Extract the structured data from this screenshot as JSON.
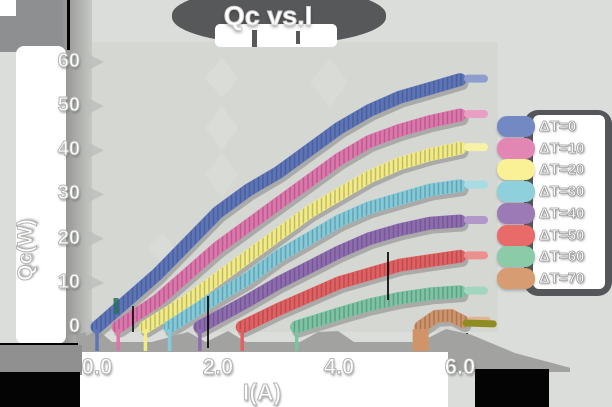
{
  "title": "Qc vs.I",
  "chart_data": {
    "type": "line",
    "title": "Qc vs.I",
    "xlabel": "I(A)",
    "ylabel": "Qc(W)",
    "x_ticks": [
      "0.0",
      "2.0",
      "4.0",
      "6.0"
    ],
    "x_tick_values": [
      0,
      2,
      4,
      6
    ],
    "y_ticks": [
      "0",
      "10",
      "20",
      "30",
      "40",
      "50",
      "60"
    ],
    "y_tick_values": [
      0,
      10,
      20,
      30,
      40,
      50,
      60
    ],
    "xlim": [
      -0.42,
      6.6
    ],
    "ylim": [
      -4,
      63
    ],
    "grid": false,
    "legend_position": "right",
    "series": [
      {
        "name": "ΔT=0",
        "line_color": "#5c74b8",
        "swatch_color": "#7289c4",
        "x": [
          0,
          0.5,
          1,
          1.5,
          2,
          2.5,
          3,
          3.5,
          4,
          4.5,
          5,
          5.5,
          6
        ],
        "y": [
          0,
          6,
          12,
          19,
          26,
          31,
          35,
          40,
          45,
          49,
          52,
          54,
          56
        ]
      },
      {
        "name": "ΔT=10",
        "line_color": "#e075ab",
        "swatch_color": "#e287b4",
        "x": [
          0.35,
          1,
          1.5,
          2,
          2.5,
          3,
          3.5,
          4,
          4.5,
          5,
          5.5,
          6
        ],
        "y": [
          0,
          6,
          12,
          18,
          23,
          28,
          33,
          38,
          42,
          44.5,
          46.5,
          48
        ]
      },
      {
        "name": "ΔT=20",
        "line_color": "#f3ec83",
        "swatch_color": "#faf096",
        "x": [
          0.8,
          1.5,
          2,
          2.5,
          3,
          3.5,
          4,
          4.5,
          5,
          5.5,
          6
        ],
        "y": [
          0,
          6,
          11,
          16,
          21,
          26,
          30,
          34,
          37,
          39,
          40.5
        ]
      },
      {
        "name": "ΔT=30",
        "line_color": "#82cbd9",
        "swatch_color": "#8ed1dc",
        "x": [
          1.2,
          2,
          2.5,
          3,
          3.5,
          4,
          4.5,
          5,
          5.5,
          6
        ],
        "y": [
          0,
          7,
          11,
          16,
          20,
          24,
          27,
          29,
          31,
          32
        ]
      },
      {
        "name": "ΔT=40",
        "line_color": "#8f6cb0",
        "swatch_color": "#9c7ab6",
        "x": [
          1.7,
          2.5,
          3,
          3.5,
          4,
          4.5,
          5,
          5.5,
          6
        ],
        "y": [
          0,
          6,
          10,
          13.5,
          17,
          20,
          22,
          23.5,
          24
        ]
      },
      {
        "name": "ΔT=50",
        "line_color": "#e45f5f",
        "swatch_color": "#e86a69",
        "x": [
          2.4,
          3,
          3.5,
          4,
          4.5,
          5,
          5.5,
          6
        ],
        "y": [
          0,
          4,
          7,
          10,
          12,
          14,
          15,
          16
        ]
      },
      {
        "name": "ΔT=60",
        "line_color": "#7cc5a2",
        "swatch_color": "#8bcba8",
        "x": [
          3.3,
          4,
          4.5,
          5,
          5.5,
          6
        ],
        "y": [
          0,
          3,
          5,
          6.5,
          7.5,
          8
        ]
      },
      {
        "name": "ΔT=70",
        "line_color": "#d19468",
        "swatch_color": "#d89c72",
        "wide_drip": true,
        "x": [
          5.35,
          5.6,
          5.85,
          6.05
        ],
        "y": [
          0,
          2.4,
          2.6,
          1.2
        ],
        "tail": {
          "x": [
            6.1,
            6.55
          ],
          "y": [
            0.9,
            0.7
          ],
          "color": "#8f8d22"
        }
      }
    ]
  },
  "palette": {
    "canvas_bg": "#dbdddb",
    "plot_bg": "#d5d7d3",
    "dark_blob": "#57585a",
    "topleft_band": "#8e8f90",
    "axis_band_gray": "#a2a3a1",
    "shadow_gray": "#9b9c9a",
    "panel_white": "#ffffff",
    "ink_black": "#040404",
    "tan_tail_olive": "#8f8d22"
  }
}
